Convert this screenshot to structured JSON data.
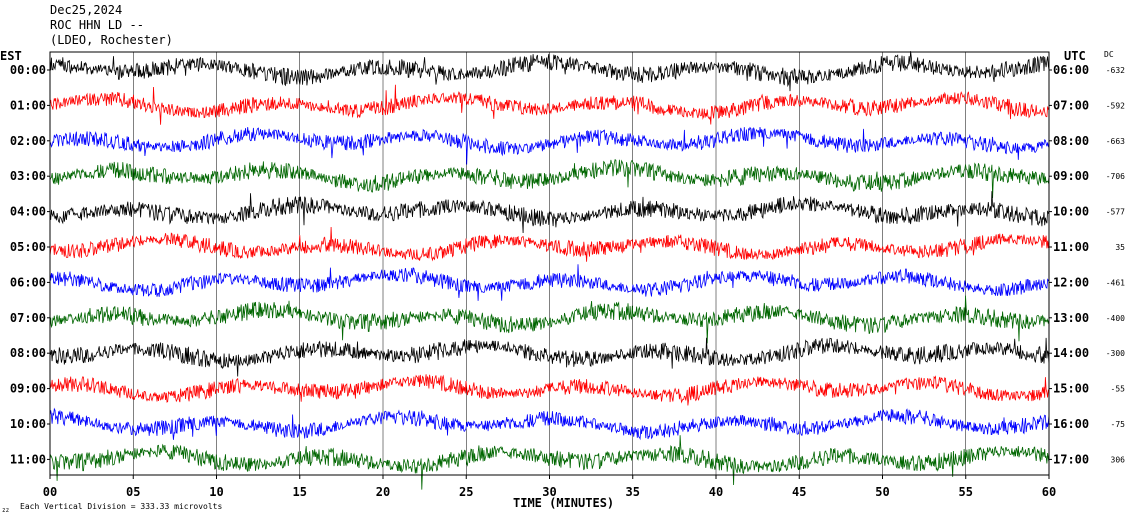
{
  "header": {
    "line1": "Dec25,2024",
    "line2": "ROC HHN LD --",
    "line3": "(LDEO, Rochester)"
  },
  "labels": {
    "left_tz": "EST",
    "right_tz": "UTC",
    "dc": "DC",
    "xlabel": "TIME (MINUTES)",
    "footer": "Each Vertical Division =  333.33 microvolts",
    "footer_mark": "zz"
  },
  "colors": {
    "black": "#000000",
    "red": "#ff0000",
    "blue": "#0000ff",
    "green": "#006600",
    "grid": "#000000"
  },
  "chart_data": {
    "type": "line",
    "xlabel": "TIME (MINUTES)",
    "xlim": [
      0,
      60
    ],
    "x_ticks": [
      0,
      5,
      10,
      15,
      20,
      25,
      30,
      35,
      40,
      45,
      50,
      55,
      60
    ],
    "x_tick_labels": [
      "00",
      "05",
      "10",
      "15",
      "20",
      "25",
      "30",
      "35",
      "40",
      "45",
      "50",
      "55",
      "60"
    ],
    "grid": true,
    "rows": [
      {
        "est": "00:00",
        "utc": "06:00",
        "dc": "-632",
        "color": "black"
      },
      {
        "est": "01:00",
        "utc": "07:00",
        "dc": "-592",
        "color": "red"
      },
      {
        "est": "02:00",
        "utc": "08:00",
        "dc": "-663",
        "color": "blue"
      },
      {
        "est": "03:00",
        "utc": "09:00",
        "dc": "-706",
        "color": "green"
      },
      {
        "est": "04:00",
        "utc": "10:00",
        "dc": "-577",
        "color": "black"
      },
      {
        "est": "05:00",
        "utc": "11:00",
        "dc": "35",
        "color": "red"
      },
      {
        "est": "06:00",
        "utc": "12:00",
        "dc": "-461",
        "color": "blue"
      },
      {
        "est": "07:00",
        "utc": "13:00",
        "dc": "-400",
        "color": "green"
      },
      {
        "est": "08:00",
        "utc": "14:00",
        "dc": "-300",
        "color": "black"
      },
      {
        "est": "09:00",
        "utc": "15:00",
        "dc": "-55",
        "color": "red"
      },
      {
        "est": "10:00",
        "utc": "16:00",
        "dc": "-75",
        "color": "blue"
      },
      {
        "est": "11:00",
        "utc": "17:00",
        "dc": "306",
        "color": "green"
      }
    ]
  }
}
